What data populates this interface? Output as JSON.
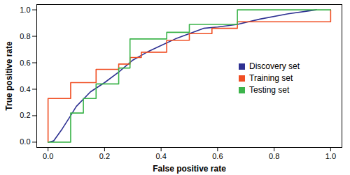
{
  "chart_data": {
    "type": "line",
    "xlabel": "False positive rate",
    "ylabel": "True positive rate",
    "xlim": [
      -0.04,
      1.04
    ],
    "ylim": [
      -0.04,
      1.04
    ],
    "xticks": [
      {
        "value": 0,
        "label": "0.0"
      },
      {
        "value": 0.2,
        "label": "0.2"
      },
      {
        "value": 0.4,
        "label": "0.4"
      },
      {
        "value": 0.6,
        "label": "0.6"
      },
      {
        "value": 0.8,
        "label": "0.8"
      },
      {
        "value": 1,
        "label": "1.0"
      }
    ],
    "yticks": [
      {
        "value": 0,
        "label": "0.0"
      },
      {
        "value": 0.2,
        "label": "0.2"
      },
      {
        "value": 0.4,
        "label": "0.4"
      },
      {
        "value": 0.6,
        "label": "0.6"
      },
      {
        "value": 0.8,
        "label": "0.8"
      },
      {
        "value": 1,
        "label": "1.0"
      }
    ],
    "grid": false,
    "legend": "right",
    "series": [
      {
        "name": "Discovery set",
        "color": "#2e3192",
        "line_style": "solid",
        "x": [
          0,
          0.02,
          0.05,
          0.08,
          0.1,
          0.15,
          0.2,
          0.25,
          0.3,
          0.35,
          0.4,
          0.45,
          0.5,
          0.55,
          0.6,
          0.67,
          0.75,
          0.85,
          0.95
        ],
        "values": [
          0,
          0.01,
          0.1,
          0.2,
          0.27,
          0.38,
          0.45,
          0.53,
          0.62,
          0.68,
          0.73,
          0.78,
          0.82,
          0.86,
          0.87,
          0.89,
          0.93,
          0.97,
          1.0
        ]
      },
      {
        "name": "Training set",
        "color": "#f04e23",
        "line_style": "step",
        "x": [
          0,
          0,
          0.08,
          0.17,
          0.25,
          0.29,
          0.33,
          0.42,
          0.42,
          0.5,
          0.58,
          0.67,
          1.0
        ],
        "values": [
          0,
          0.33,
          0.45,
          0.55,
          0.59,
          0.64,
          0.68,
          0.73,
          0.77,
          0.82,
          0.86,
          0.91,
          1.0
        ]
      },
      {
        "name": "Testing set",
        "color": "#3cb44b",
        "line_style": "step",
        "x": [
          0,
          0.08,
          0.125,
          0.17,
          0.25,
          0.29,
          0.29,
          0.42,
          0.5,
          0.67,
          1.0
        ],
        "values": [
          0,
          0.22,
          0.33,
          0.44,
          0.56,
          0.67,
          0.78,
          0.83,
          0.89,
          1.0,
          1.0
        ]
      }
    ]
  }
}
